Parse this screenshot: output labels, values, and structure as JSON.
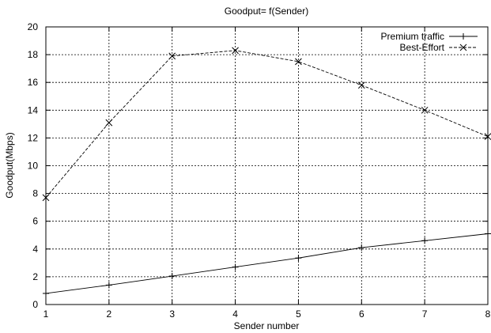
{
  "chart_data": {
    "type": "line",
    "title": "Goodput= f(Sender)",
    "xlabel": "Sender number",
    "ylabel": "Goodput(Mbps)",
    "xlim": [
      1,
      8
    ],
    "ylim": [
      0,
      20
    ],
    "x_ticks": [
      1,
      2,
      3,
      4,
      5,
      6,
      7,
      8
    ],
    "y_ticks": [
      0,
      2,
      4,
      6,
      8,
      10,
      12,
      14,
      16,
      18,
      20
    ],
    "grid": true,
    "legend_position": "top-right",
    "x": [
      1,
      2,
      3,
      4,
      5,
      6,
      7,
      8
    ],
    "series": [
      {
        "name": "Premium traffic",
        "marker": "plus",
        "line_style": "solid",
        "values": [
          0.8,
          1.4,
          2.05,
          2.7,
          3.35,
          4.1,
          4.6,
          5.1
        ]
      },
      {
        "name": "Best-Effort",
        "marker": "cross",
        "line_style": "dashed",
        "values": [
          7.7,
          13.1,
          17.9,
          18.3,
          17.5,
          15.8,
          14.0,
          12.1
        ]
      }
    ]
  }
}
